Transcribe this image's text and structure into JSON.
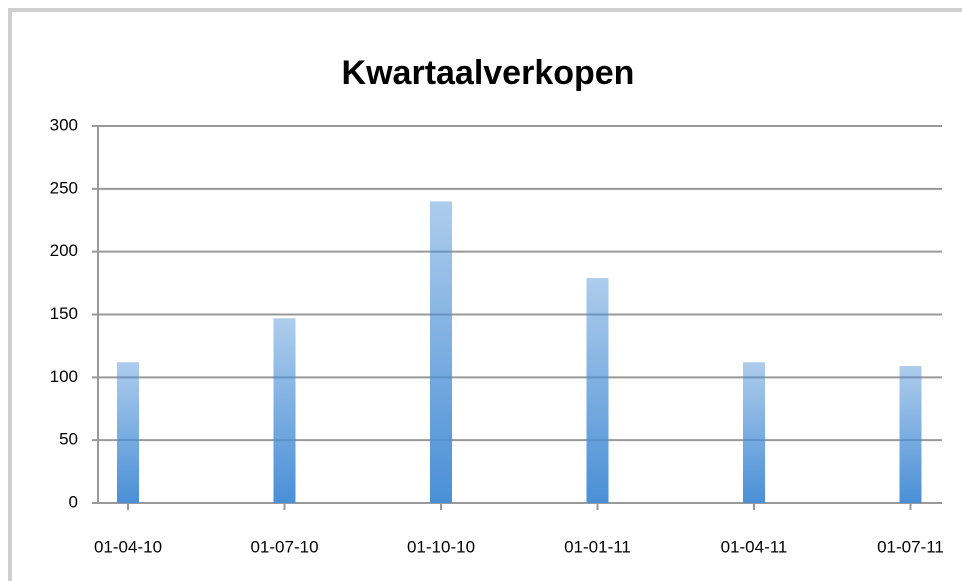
{
  "chart_data": {
    "type": "bar",
    "title": "Kwartaalverkopen",
    "categories": [
      "01-04-10",
      "01-07-10",
      "01-10-10",
      "01-01-11",
      "01-04-11",
      "01-07-11"
    ],
    "values": [
      112,
      147,
      240,
      179,
      112,
      109
    ],
    "color": "#4a8fd6",
    "ylim": [
      0,
      300
    ],
    "yticks": [
      0,
      50,
      100,
      150,
      200,
      250,
      300
    ],
    "grid": true
  }
}
